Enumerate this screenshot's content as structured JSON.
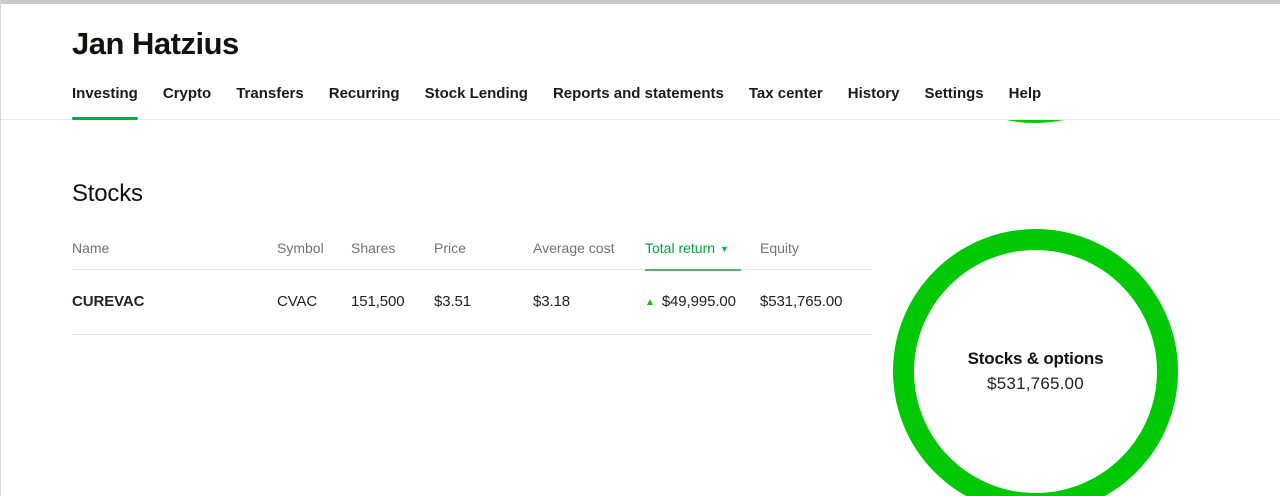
{
  "colors": {
    "brand_green": "#00c805",
    "active_tab_green": "#00ab44",
    "sorted_header_green": "#00a33e",
    "table_header_gray": "#6f7377",
    "divider_gray": "#e6e6e6"
  },
  "header": {
    "account_title": "Jan Hatzius"
  },
  "nav": {
    "items": [
      {
        "label": "Investing",
        "active": true
      },
      {
        "label": "Crypto",
        "active": false
      },
      {
        "label": "Transfers",
        "active": false
      },
      {
        "label": "Recurring",
        "active": false
      },
      {
        "label": "Stock Lending",
        "active": false
      },
      {
        "label": "Reports and statements",
        "active": false
      },
      {
        "label": "Tax center",
        "active": false
      },
      {
        "label": "History",
        "active": false
      },
      {
        "label": "Settings",
        "active": false
      },
      {
        "label": "Help",
        "active": false
      }
    ]
  },
  "stocks": {
    "section_title": "Stocks",
    "table": {
      "headers": {
        "name": "Name",
        "symbol": "Symbol",
        "shares": "Shares",
        "price": "Price",
        "average_cost": "Average cost",
        "total_return": "Total return",
        "equity": "Equity"
      },
      "sort": {
        "column": "total_return",
        "direction": "desc",
        "icon": "▼"
      },
      "rows": [
        {
          "name": "CUREVAC",
          "symbol": "CVAC",
          "shares": "151,500",
          "price": "$3.51",
          "average_cost": "$3.18",
          "total_return": "$49,995.00",
          "total_return_direction": "up",
          "total_return_icon": "▲",
          "equity": "$531,765.00"
        }
      ]
    }
  },
  "portfolio_donut": {
    "label": "Stocks & options",
    "value": "$531,765.00"
  }
}
